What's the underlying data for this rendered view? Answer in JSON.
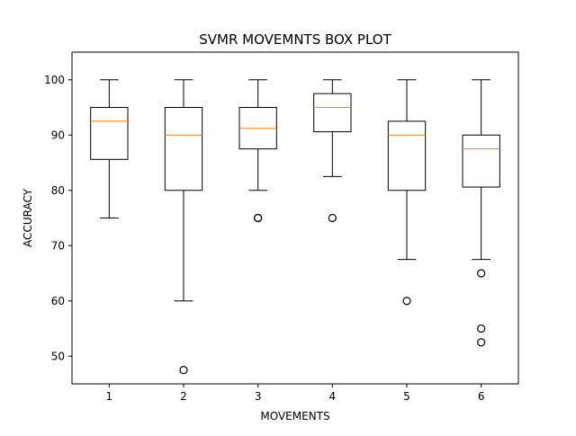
{
  "chart_data": {
    "type": "box",
    "title": "SVMR MOVEMNTS BOX PLOT",
    "xlabel": "MOVEMENTS",
    "ylabel": "ACCURACY",
    "categories": [
      "1",
      "2",
      "3",
      "4",
      "5",
      "6"
    ],
    "ylim": [
      45,
      105
    ],
    "yticks": [
      "50",
      "60",
      "70",
      "80",
      "90",
      "100"
    ],
    "grid": false,
    "colors": {
      "box": "#000000",
      "median": "#ff7f0e",
      "background": "#ffffff"
    },
    "boxes": [
      {
        "label": "1",
        "whisker_low": 75,
        "q1": 85.6,
        "median": 92.5,
        "q3": 95,
        "whisker_high": 100,
        "outliers": []
      },
      {
        "label": "2",
        "whisker_low": 60,
        "q1": 80,
        "median": 90,
        "q3": 95,
        "whisker_high": 100,
        "outliers": [
          47.5
        ]
      },
      {
        "label": "3",
        "whisker_low": 80,
        "q1": 87.5,
        "median": 91.2,
        "q3": 95,
        "whisker_high": 100,
        "outliers": [
          75,
          75
        ]
      },
      {
        "label": "4",
        "whisker_low": 82.5,
        "q1": 90.6,
        "median": 95,
        "q3": 97.5,
        "whisker_high": 100,
        "outliers": [
          75
        ]
      },
      {
        "label": "5",
        "whisker_low": 67.5,
        "q1": 80,
        "median": 90,
        "q3": 92.5,
        "whisker_high": 100,
        "outliers": [
          60
        ]
      },
      {
        "label": "6",
        "whisker_low": 67.5,
        "q1": 80.6,
        "median": 87.5,
        "q3": 90,
        "whisker_high": 100,
        "outliers": [
          65,
          55,
          52.5
        ]
      }
    ]
  }
}
